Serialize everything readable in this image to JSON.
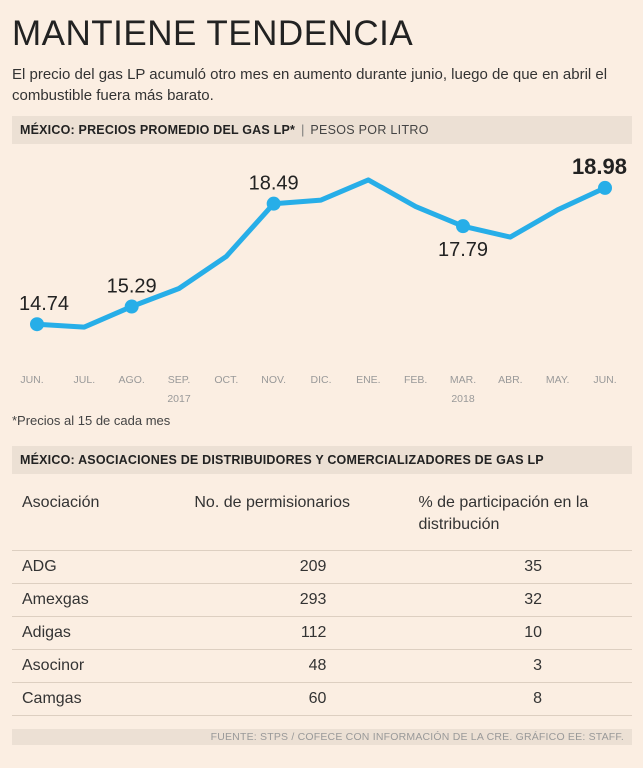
{
  "header": {
    "title": "MANTIENE TENDENCIA",
    "subtitle": "El precio del gas LP acumuló otro mes en aumento durante junio, luego de que en abril el combustible fuera más barato."
  },
  "section1": {
    "label": "MÉXICO: PRECIOS PROMEDIO DEL GAS LP*",
    "separator": "|",
    "unit": "PESOS POR LITRO"
  },
  "chart_data": {
    "type": "line",
    "title": "MÉXICO: PRECIOS PROMEDIO DEL GAS LP*",
    "ylabel": "PESOS POR LITRO",
    "xlabel": "",
    "categories": [
      "JUN.",
      "JUL.",
      "AGO.",
      "SEP.",
      "OCT.",
      "NOV.",
      "DIC.",
      "ENE.",
      "FEB.",
      "MAR.",
      "ABR.",
      "MAY.",
      "JUN."
    ],
    "year_labels": [
      {
        "index": 3,
        "text": "2017"
      },
      {
        "index": 9,
        "text": "2018"
      }
    ],
    "series": [
      {
        "name": "Precio promedio gas LP",
        "color": "#27aee8",
        "values": [
          14.74,
          14.65,
          15.29,
          15.85,
          16.85,
          18.49,
          18.6,
          19.23,
          18.4,
          17.79,
          17.45,
          18.3,
          18.98
        ]
      }
    ],
    "data_labels": [
      {
        "index": 0,
        "text": "14.74",
        "bold": false
      },
      {
        "index": 2,
        "text": "15.29",
        "bold": false
      },
      {
        "index": 5,
        "text": "18.49",
        "bold": false
      },
      {
        "index": 9,
        "text": "17.79",
        "bold": false
      },
      {
        "index": 12,
        "text": "18.98",
        "bold": true
      }
    ],
    "ylim": [
      14.0,
      19.6
    ],
    "grid": false
  },
  "note": "*Precios al 15 de cada mes",
  "section2": {
    "label": "MÉXICO: ASOCIACIONES DE DISTRIBUIDORES Y COMERCIALIZADORES DE GAS LP"
  },
  "table": {
    "headers": [
      "Asociación",
      "No. de permisionarios",
      "% de participación en la distribución"
    ],
    "rows": [
      [
        "ADG",
        "209",
        "35"
      ],
      [
        "Amexgas",
        "293",
        "32"
      ],
      [
        "Adigas",
        "112",
        "10"
      ],
      [
        "Asocinor",
        "48",
        "3"
      ],
      [
        "Camgas",
        "60",
        "8"
      ]
    ]
  },
  "source": "FUENTE: STPS / COFECE CON INFORMACIÓN DE LA CRE. GRÁFICO EE: STAFF."
}
